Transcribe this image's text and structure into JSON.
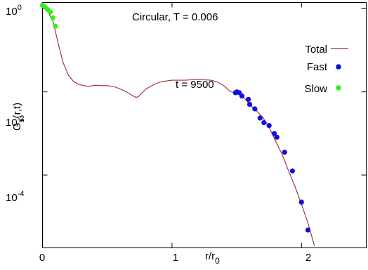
{
  "chart_data": {
    "type": "line",
    "title": "Circular, T = 0.006",
    "annotation": "t = 9500",
    "ylabel_main": "G",
    "ylabel_sub": "s",
    "ylabel_args": "(r,t)",
    "xlabel_main": "r/r",
    "xlabel_sub": "0",
    "x_ticks": [
      "0",
      "1",
      "2"
    ],
    "x_tick_values": [
      0,
      1,
      2
    ],
    "xlim": [
      0,
      2.5
    ],
    "y_scale": "log",
    "ylim_log10": [
      -5.75,
      0.15
    ],
    "y_ticks": [
      {
        "base": "10",
        "exp": "0",
        "log10": 0
      },
      {
        "base": "10",
        "exp": "-2",
        "log10": -2
      },
      {
        "base": "10",
        "exp": "-4",
        "log10": -4
      }
    ],
    "legend_position": "top-right",
    "grid": false,
    "series": [
      {
        "name": "Total",
        "kind": "line",
        "color": "#9b2a2a",
        "x": [
          0.0,
          0.01,
          0.03,
          0.05,
          0.08,
          0.1,
          0.13,
          0.16,
          0.2,
          0.24,
          0.28,
          0.32,
          0.36,
          0.4,
          0.45,
          0.5,
          0.55,
          0.6,
          0.65,
          0.69,
          0.72,
          0.74,
          0.76,
          0.8,
          0.85,
          0.9,
          0.95,
          1.0,
          1.05,
          1.1,
          1.15,
          1.2,
          1.25,
          1.3,
          1.35,
          1.4,
          1.45,
          1.5,
          1.55,
          1.6,
          1.65,
          1.7,
          1.75,
          1.8,
          1.85,
          1.9,
          1.95,
          2.0,
          2.05,
          2.1
        ],
        "y_log10": [
          0.08,
          0.05,
          -0.03,
          -0.12,
          -0.3,
          -0.55,
          -0.95,
          -1.3,
          -1.6,
          -1.75,
          -1.82,
          -1.85,
          -1.87,
          -1.84,
          -1.85,
          -1.85,
          -1.87,
          -1.93,
          -2.0,
          -2.08,
          -2.13,
          -2.12,
          -2.05,
          -1.93,
          -1.84,
          -1.77,
          -1.74,
          -1.72,
          -1.72,
          -1.72,
          -1.71,
          -1.71,
          -1.71,
          -1.72,
          -1.76,
          -1.85,
          -1.99,
          -2.03,
          -2.12,
          -2.3,
          -2.45,
          -2.61,
          -2.85,
          -3.18,
          -3.5,
          -3.9,
          -4.28,
          -4.7,
          -5.15,
          -5.7
        ]
      },
      {
        "name": "Fast",
        "kind": "points",
        "color": "#1111dd",
        "x": [
          1.49,
          1.5,
          1.52,
          1.54,
          1.59,
          1.6,
          1.64,
          1.68,
          1.71,
          1.75,
          1.79,
          1.81,
          1.87,
          1.93,
          2.0,
          2.05
        ],
        "y_log10": [
          -2.02,
          -2.0,
          -2.02,
          -2.1,
          -2.18,
          -2.3,
          -2.41,
          -2.63,
          -2.74,
          -2.81,
          -3.0,
          -3.09,
          -3.45,
          -3.9,
          -4.65,
          -5.32
        ]
      },
      {
        "name": "Slow",
        "kind": "points",
        "color": "#33ee22",
        "x": [
          0.0,
          0.02,
          0.04,
          0.06,
          0.08,
          0.1
        ],
        "y_log10": [
          0.08,
          0.04,
          -0.02,
          -0.08,
          -0.22,
          -0.42
        ]
      }
    ]
  }
}
